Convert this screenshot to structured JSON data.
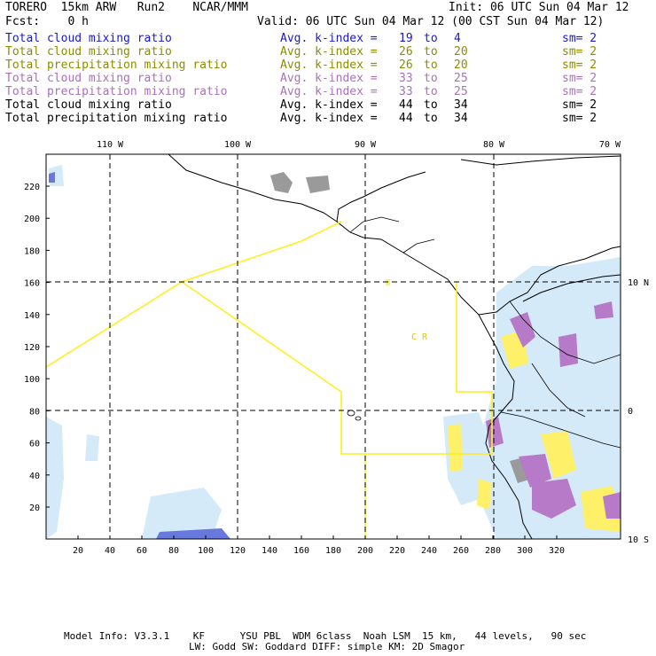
{
  "header": {
    "model": "TORERO  15km ARW   Run2    NCAR/MMM",
    "fcst": "Fcst:    0 h",
    "init": "Init: 06 UTC Sun 04 Mar 12",
    "valid": "Valid: 06 UTC Sun 04 Mar 12 (00 CST Sun 04 Mar 12)"
  },
  "legend": [
    {
      "field": "Total cloud mixing ratio",
      "index": "Avg. k-index =",
      "lo": "19",
      "to": "to",
      "hi": "4",
      "sm": "sm= 2",
      "color": "#1a1acc"
    },
    {
      "field": "Total cloud mixing ratio",
      "index": "Avg. k-index =",
      "lo": "26",
      "to": "to",
      "hi": "20",
      "sm": "sm= 2",
      "color": "#8c8c00"
    },
    {
      "field": "Total precipitation mixing ratio",
      "index": "Avg. k-index =",
      "lo": "26",
      "to": "to",
      "hi": "20",
      "sm": "sm= 2",
      "color": "#8c8c00"
    },
    {
      "field": "Total cloud mixing ratio",
      "index": "Avg. k-index =",
      "lo": "33",
      "to": "to",
      "hi": "25",
      "sm": "sm= 2",
      "color": "#a872b8"
    },
    {
      "field": "Total precipitation mixing ratio",
      "index": "Avg. k-index =",
      "lo": "33",
      "to": "to",
      "hi": "25",
      "sm": "sm= 2",
      "color": "#a872b8"
    },
    {
      "field": "Total cloud mixing ratio",
      "index": "Avg. k-index =",
      "lo": "44",
      "to": "to",
      "hi": "34",
      "sm": "sm= 2",
      "color": "#000000"
    },
    {
      "field": "Total precipitation mixing ratio",
      "index": "Avg. k-index =",
      "lo": "44",
      "to": "to",
      "hi": "34",
      "sm": "sm= 2",
      "color": "#000000"
    }
  ],
  "map": {
    "lon_labels": [
      "110 W",
      "100 W",
      "90 W",
      "80 W",
      "70 W"
    ],
    "lat_labels": [
      "10 N",
      "0",
      "10 S"
    ],
    "x_ticks": [
      "20",
      "40",
      "60",
      "80",
      "100",
      "120",
      "140",
      "160",
      "180",
      "200",
      "220",
      "240",
      "260",
      "280",
      "300",
      "320"
    ],
    "y_ticks": [
      "20",
      "40",
      "60",
      "80",
      "100",
      "120",
      "140",
      "160",
      "180",
      "200",
      "220"
    ],
    "region_label": "C  R",
    "colors": {
      "coast": "#000000",
      "grid": "#000000",
      "boundary": "#ffee22",
      "cloud_light": "#cfe8f8",
      "cloud_blue": "#6a7ee0",
      "gray": "#999999",
      "purple": "#b77ac8",
      "yellow": "#fff06a"
    }
  },
  "footer": {
    "line1": "Model Info: V3.3.1    KF      YSU PBL  WDM 6class  Noah LSM  15 km,   44 levels,   90 sec",
    "line2": "LW: Godd SW: Goddard DIFF: simple KM: 2D Smagor"
  }
}
